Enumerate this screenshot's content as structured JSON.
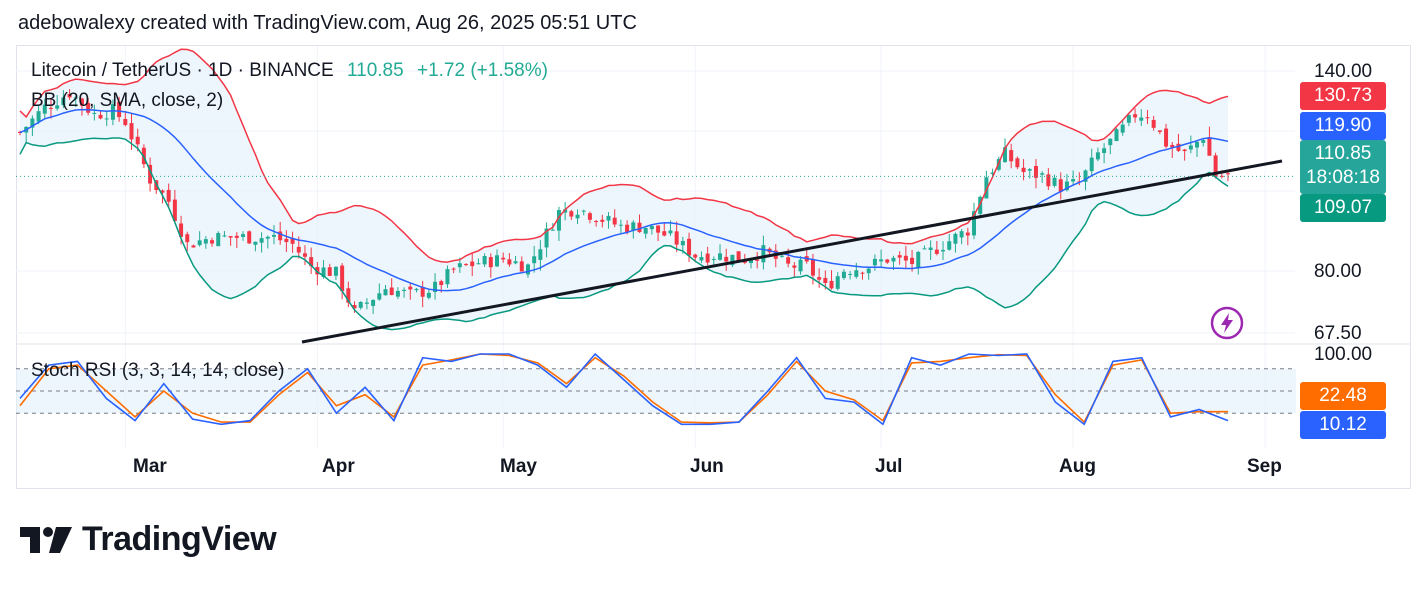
{
  "header": {
    "caption": "adebowalexy created with TradingView.com, Aug 26, 2025 05:51 UTC"
  },
  "symbol": {
    "title": "Litecoin / TetherUS · 1D · BINANCE",
    "last": "110.85",
    "change": "+1.72 (+1.58%)"
  },
  "indicators": {
    "bb_label": "BB (20, SMA, close, 2)",
    "rsi_label": "Stoch RSI (3, 3, 14, 14, close)"
  },
  "price_badges": {
    "bb_upper": "130.73",
    "bb_basis": "119.90",
    "last": "110.85",
    "countdown": "18:08:18",
    "bb_lower": "109.07"
  },
  "rsi_badges": {
    "d": "22.48",
    "k": "10.12"
  },
  "price_axis_ticks": [
    "140.00",
    "80.00",
    "67.50"
  ],
  "rsi_axis_ticks": [
    "100.00"
  ],
  "time_axis_ticks": [
    "Mar",
    "Apr",
    "May",
    "Jun",
    "Jul",
    "Aug",
    "Sep"
  ],
  "brand": {
    "name": "TradingView"
  },
  "colors": {
    "up": "#22ab94",
    "down": "#f23645",
    "bb_upper": "#f23645",
    "bb_basis": "#2962ff",
    "bb_lower": "#089981",
    "rsi_k": "#2962ff",
    "rsi_d": "#ff6d00",
    "band_fill": "#e3f0fb",
    "trendline": "#131722"
  },
  "chart_data": [
    {
      "type": "candlestick",
      "title": "Litecoin / TetherUS · 1D · BINANCE",
      "x_range": [
        "2025-02-12",
        "2025-08-26"
      ],
      "y_axis_ticks": [
        140.0,
        80.0,
        67.5
      ],
      "series": [
        {
          "name": "LTCUSDT close",
          "points": [
            [
              "2025-02-12",
              123
            ],
            [
              "2025-02-16",
              130
            ],
            [
              "2025-02-20",
              134
            ],
            [
              "2025-02-24",
              128
            ],
            [
              "2025-02-27",
              129
            ],
            [
              "2025-03-01",
              126
            ],
            [
              "2025-03-03",
              118
            ],
            [
              "2025-03-05",
              110
            ],
            [
              "2025-03-08",
              104
            ],
            [
              "2025-03-11",
              92
            ],
            [
              "2025-03-15",
              94
            ],
            [
              "2025-03-20",
              94
            ],
            [
              "2025-03-25",
              94
            ],
            [
              "2025-03-28",
              92
            ],
            [
              "2025-03-31",
              86
            ],
            [
              "2025-04-04",
              84
            ],
            [
              "2025-04-07",
              73
            ],
            [
              "2025-04-09",
              76
            ],
            [
              "2025-04-12",
              80
            ],
            [
              "2025-04-16",
              78
            ],
            [
              "2025-04-20",
              80
            ],
            [
              "2025-04-23",
              85
            ],
            [
              "2025-04-27",
              87
            ],
            [
              "2025-05-01",
              88
            ],
            [
              "2025-05-05",
              86
            ],
            [
              "2025-05-07",
              92
            ],
            [
              "2025-05-10",
              101
            ],
            [
              "2025-05-13",
              102
            ],
            [
              "2025-05-17",
              99
            ],
            [
              "2025-05-20",
              97
            ],
            [
              "2025-05-24",
              97
            ],
            [
              "2025-05-28",
              94
            ],
            [
              "2025-06-01",
              89
            ],
            [
              "2025-06-05",
              89
            ],
            [
              "2025-06-09",
              88
            ],
            [
              "2025-06-12",
              90
            ],
            [
              "2025-06-16",
              86
            ],
            [
              "2025-06-19",
              86
            ],
            [
              "2025-06-22",
              80
            ],
            [
              "2025-06-25",
              85
            ],
            [
              "2025-06-29",
              86
            ],
            [
              "2025-07-02",
              88
            ],
            [
              "2025-07-06",
              87
            ],
            [
              "2025-07-09",
              90
            ],
            [
              "2025-07-12",
              93
            ],
            [
              "2025-07-15",
              96
            ],
            [
              "2025-07-18",
              111
            ],
            [
              "2025-07-21",
              117
            ],
            [
              "2025-07-24",
              112
            ],
            [
              "2025-07-27",
              111
            ],
            [
              "2025-07-30",
              108
            ],
            [
              "2025-08-02",
              109
            ],
            [
              "2025-08-05",
              117
            ],
            [
              "2025-08-08",
              122
            ],
            [
              "2025-08-11",
              128
            ],
            [
              "2025-08-13",
              128
            ],
            [
              "2025-08-16",
              120
            ],
            [
              "2025-08-19",
              117
            ],
            [
              "2025-08-22",
              122
            ],
            [
              "2025-08-24",
              111
            ],
            [
              "2025-08-26",
              110.85
            ]
          ]
        },
        {
          "name": "BB upper",
          "last": 130.73
        },
        {
          "name": "BB basis",
          "last": 119.9
        },
        {
          "name": "BB lower",
          "last": 109.07
        }
      ],
      "annotations": [
        "ascending trendline drawn from early April lows to late August"
      ]
    },
    {
      "type": "line",
      "title": "Stoch RSI (3, 3, 14, 14, close)",
      "y_axis_ticks": [
        100.0
      ],
      "ylim": [
        0,
        100
      ],
      "series": [
        {
          "name": "K",
          "last": 10.12,
          "values": [
            40,
            85,
            90,
            40,
            10,
            60,
            12,
            5,
            10,
            50,
            80,
            20,
            55,
            10,
            95,
            90,
            100,
            100,
            85,
            55,
            100,
            65,
            30,
            5,
            5,
            8,
            50,
            95,
            40,
            35,
            5,
            95,
            85,
            100,
            98,
            100,
            35,
            5,
            90,
            95,
            15,
            25,
            10
          ]
        },
        {
          "name": "D",
          "last": 22.48,
          "values": [
            30,
            80,
            85,
            50,
            15,
            50,
            20,
            8,
            8,
            45,
            75,
            30,
            45,
            15,
            85,
            92,
            100,
            98,
            88,
            60,
            95,
            70,
            35,
            8,
            7,
            8,
            45,
            90,
            50,
            38,
            10,
            88,
            90,
            95,
            99,
            98,
            45,
            8,
            85,
            92,
            20,
            22,
            22
          ]
        }
      ]
    }
  ]
}
